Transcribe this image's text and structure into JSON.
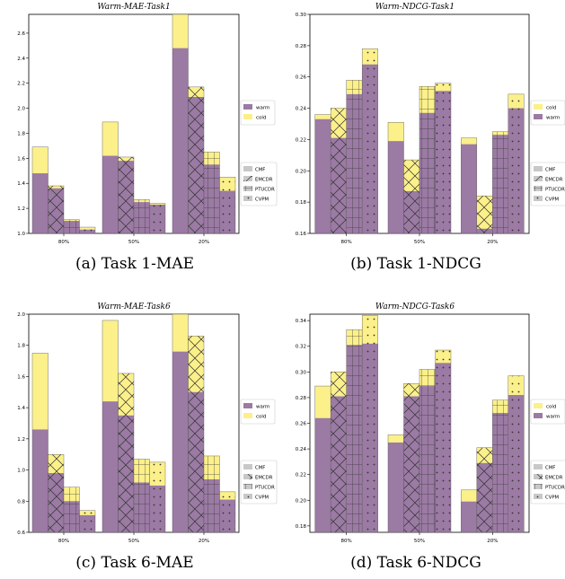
{
  "colors": {
    "warm": "#9b7aa4",
    "cold": "#fbf08a",
    "legend_gray": "#c8c8c8",
    "hatch": "#333333"
  },
  "captions": [
    "(a) Task 1-MAE",
    "(b) Task 1-NDCG",
    "(c) Task 6-MAE",
    "(d) Task 6-NDCG"
  ],
  "chart_data": [
    {
      "type": "bar",
      "title": "Warm-MAE-Task1",
      "categories": [
        "80%",
        "50%",
        "20%"
      ],
      "methods": [
        "CMF",
        "EMCDR",
        "PTUCDR",
        "CVPM"
      ],
      "ylim": [
        1.0,
        2.75
      ],
      "yticks": [
        "1.0",
        "1.2",
        "1.4",
        "1.6",
        "1.8",
        "2.0",
        "2.2",
        "2.4",
        "2.6"
      ],
      "legend_color": [
        "warm",
        "cold"
      ],
      "series": [
        {
          "name": "warm",
          "values": [
            [
              1.48,
              1.36,
              1.1,
              1.03
            ],
            [
              1.62,
              1.58,
              1.25,
              1.23
            ],
            [
              2.48,
              2.09,
              1.55,
              1.34
            ]
          ]
        },
        {
          "name": "cold",
          "values": [
            [
              1.69,
              1.38,
              1.11,
              1.05
            ],
            [
              1.89,
              1.61,
              1.27,
              1.24
            ],
            [
              2.75,
              2.17,
              1.65,
              1.45
            ]
          ]
        }
      ]
    },
    {
      "type": "bar",
      "title": "Warm-NDCG-Task1",
      "categories": [
        "80%",
        "50%",
        "20%"
      ],
      "methods": [
        "CMF",
        "EMCDR",
        "PTUCDR",
        "CVPM"
      ],
      "ylim": [
        0.16,
        0.3
      ],
      "yticks": [
        "0.16",
        "0.18",
        "0.20",
        "0.22",
        "0.24",
        "0.26",
        "0.28",
        "0.30"
      ],
      "legend_color": [
        "cold",
        "warm"
      ],
      "series": [
        {
          "name": "warm",
          "values": [
            [
              0.233,
              0.221,
              0.249,
              0.268
            ],
            [
              0.219,
              0.187,
              0.237,
              0.251
            ],
            [
              0.217,
              0.163,
              0.223,
              0.24
            ]
          ]
        },
        {
          "name": "cold",
          "values": [
            [
              0.236,
              0.24,
              0.258,
              0.278
            ],
            [
              0.231,
              0.207,
              0.254,
              0.256
            ],
            [
              0.221,
              0.184,
              0.225,
              0.249
            ]
          ]
        }
      ]
    },
    {
      "type": "bar",
      "title": "Warm-MAE-Task6",
      "categories": [
        "80%",
        "50%",
        "20%"
      ],
      "methods": [
        "CMF",
        "EMCDR",
        "PTUCDR",
        "CVPM"
      ],
      "ylim": [
        0.6,
        2.0
      ],
      "yticks": [
        "0.6",
        "0.8",
        "1.0",
        "1.2",
        "1.4",
        "1.6",
        "1.8",
        "2.0"
      ],
      "legend_color": [
        "warm",
        "cold"
      ],
      "series": [
        {
          "name": "warm",
          "values": [
            [
              1.26,
              0.98,
              0.8,
              0.71
            ],
            [
              1.44,
              1.35,
              0.92,
              0.9
            ],
            [
              1.76,
              1.5,
              0.94,
              0.81
            ]
          ]
        },
        {
          "name": "cold",
          "values": [
            [
              1.75,
              1.1,
              0.89,
              0.74
            ],
            [
              1.96,
              1.62,
              1.07,
              1.05
            ],
            [
              2.0,
              1.86,
              1.09,
              0.86
            ]
          ]
        }
      ]
    },
    {
      "type": "bar",
      "title": "Warm-NDCG-Task6",
      "categories": [
        "80%",
        "50%",
        "20%"
      ],
      "methods": [
        "CMF",
        "EMCDR",
        "PTUCDR",
        "CVPM"
      ],
      "ylim": [
        0.175,
        0.345
      ],
      "yticks": [
        "0.18",
        "0.20",
        "0.22",
        "0.24",
        "0.26",
        "0.28",
        "0.30",
        "0.32",
        "0.34"
      ],
      "legend_color": [
        "cold",
        "warm"
      ],
      "series": [
        {
          "name": "warm",
          "values": [
            [
              0.264,
              0.281,
              0.321,
              0.322
            ],
            [
              0.245,
              0.281,
              0.289,
              0.307
            ],
            [
              0.199,
              0.229,
              0.268,
              0.282
            ]
          ]
        },
        {
          "name": "cold",
          "values": [
            [
              0.289,
              0.3,
              0.333,
              0.344
            ],
            [
              0.251,
              0.291,
              0.302,
              0.317
            ],
            [
              0.208,
              0.241,
              0.278,
              0.297
            ]
          ]
        }
      ]
    }
  ]
}
